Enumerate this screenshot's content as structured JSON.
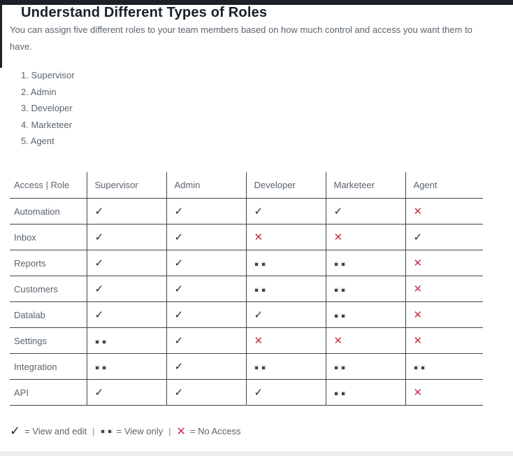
{
  "page": {
    "title": "Understand Different Types of Roles",
    "intro": "You can assign five different roles to your team members based on how much control and access you want them to have.",
    "roles": [
      "Supervisor",
      "Admin",
      "Developer",
      "Marketeer",
      "Agent"
    ]
  },
  "table": {
    "headers": [
      "Access | Role",
      "Supervisor",
      "Admin",
      "Developer",
      "Marketeer",
      "Agent"
    ],
    "rows": [
      {
        "feature": "Automation",
        "access": [
          "check",
          "check",
          "check",
          "check",
          "cross"
        ]
      },
      {
        "feature": "Inbox",
        "access": [
          "check",
          "check",
          "cross",
          "cross",
          "check"
        ]
      },
      {
        "feature": "Reports",
        "access": [
          "check",
          "check",
          "dots",
          "dots",
          "cross"
        ]
      },
      {
        "feature": "Customers",
        "access": [
          "check",
          "check",
          "dots",
          "dots",
          "cross"
        ]
      },
      {
        "feature": "Datalab",
        "access": [
          "check",
          "check",
          "check",
          "dots",
          "cross"
        ]
      },
      {
        "feature": "Settings",
        "access": [
          "dots",
          "check",
          "cross",
          "cross",
          "cross"
        ]
      },
      {
        "feature": "Integration",
        "access": [
          "dots",
          "check",
          "dots",
          "dots",
          "dots"
        ]
      },
      {
        "feature": "API",
        "access": [
          "check",
          "check",
          "check",
          "dots",
          "cross"
        ]
      }
    ]
  },
  "legend": {
    "separator": "|",
    "items": [
      {
        "symbol": "check",
        "label": "= View and edit"
      },
      {
        "symbol": "dots",
        "label": "= View only"
      },
      {
        "symbol": "cross",
        "label": "= No Access"
      }
    ]
  },
  "symbols": {
    "check": "✓",
    "cross": "✕"
  },
  "colors": {
    "topbar": "#1c2127",
    "heading_ink": "#15222b",
    "muted_text": "#5a646e",
    "table_border": "#3f4449",
    "check_dark": "#23282e",
    "cross_red": "#c62f47"
  }
}
